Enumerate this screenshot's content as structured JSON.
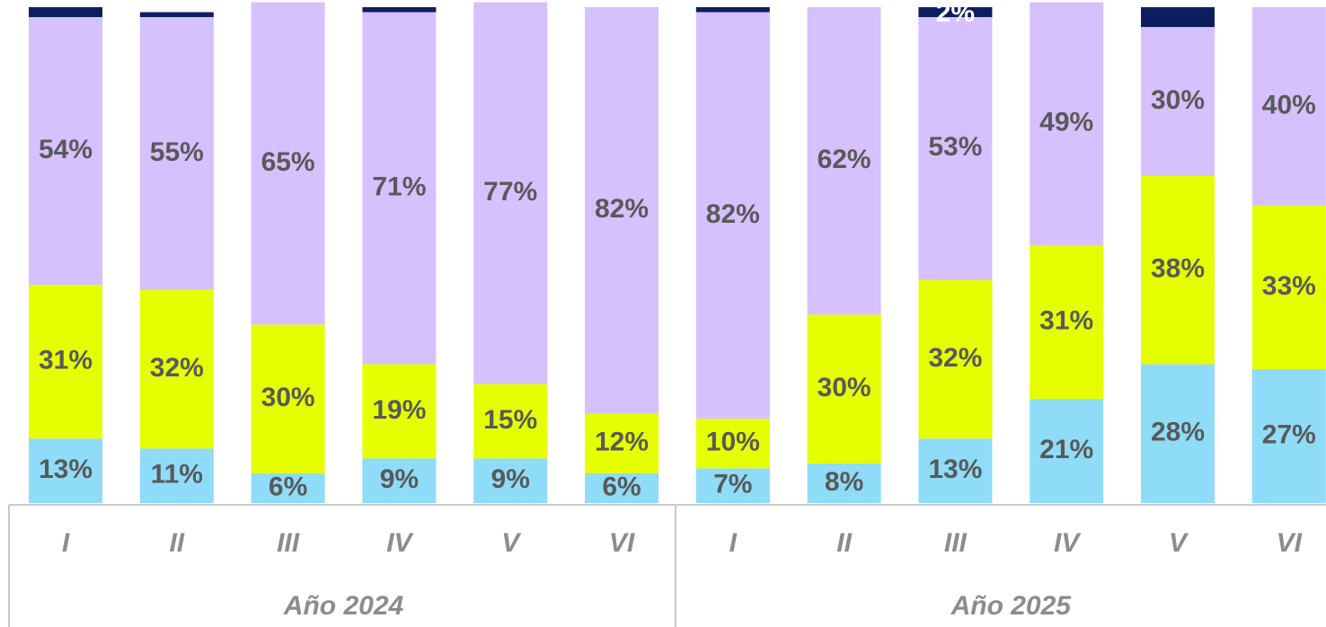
{
  "chart_data": {
    "type": "stacked_bar",
    "categories": [
      "I",
      "II",
      "III",
      "IV",
      "V",
      "VI",
      "I",
      "II",
      "III",
      "IV",
      "V",
      "VI"
    ],
    "category_groups": [
      "Año 2024",
      "Año 2025"
    ],
    "ylim": [
      0,
      100
    ],
    "series": [
      {
        "color": "#8edcf8",
        "values": [
          13,
          11,
          6,
          9,
          9,
          6,
          7,
          8,
          13,
          21,
          28,
          27
        ],
        "value_labels": [
          "13%",
          "11%",
          "6%",
          "9%",
          "9%",
          "6%",
          "7%",
          "8%",
          "13%",
          "21%",
          "28%",
          "27%"
        ]
      },
      {
        "color": "#e6ff00",
        "values": [
          31,
          32,
          30,
          19,
          15,
          12,
          10,
          30,
          32,
          31,
          38,
          33
        ],
        "value_labels": [
          "31%",
          "32%",
          "30%",
          "19%",
          "15%",
          "12%",
          "10%",
          "30%",
          "32%",
          "31%",
          "38%",
          "33%"
        ]
      },
      {
        "color": "#d6c0fd",
        "values": [
          54,
          55,
          65,
          71,
          77,
          82,
          82,
          62,
          53,
          49,
          30,
          40
        ],
        "value_labels": [
          "54%",
          "55%",
          "65%",
          "71%",
          "77%",
          "82%",
          "82%",
          "62%",
          "53%",
          "49%",
          "30%",
          "40%"
        ]
      },
      {
        "color": "#0b1f5e",
        "values": [
          2,
          1,
          0,
          1,
          0,
          0,
          1,
          0,
          2,
          0,
          4,
          0
        ],
        "value_labels": [
          null,
          null,
          null,
          null,
          null,
          null,
          null,
          null,
          "2%",
          null,
          null,
          null
        ]
      }
    ]
  }
}
